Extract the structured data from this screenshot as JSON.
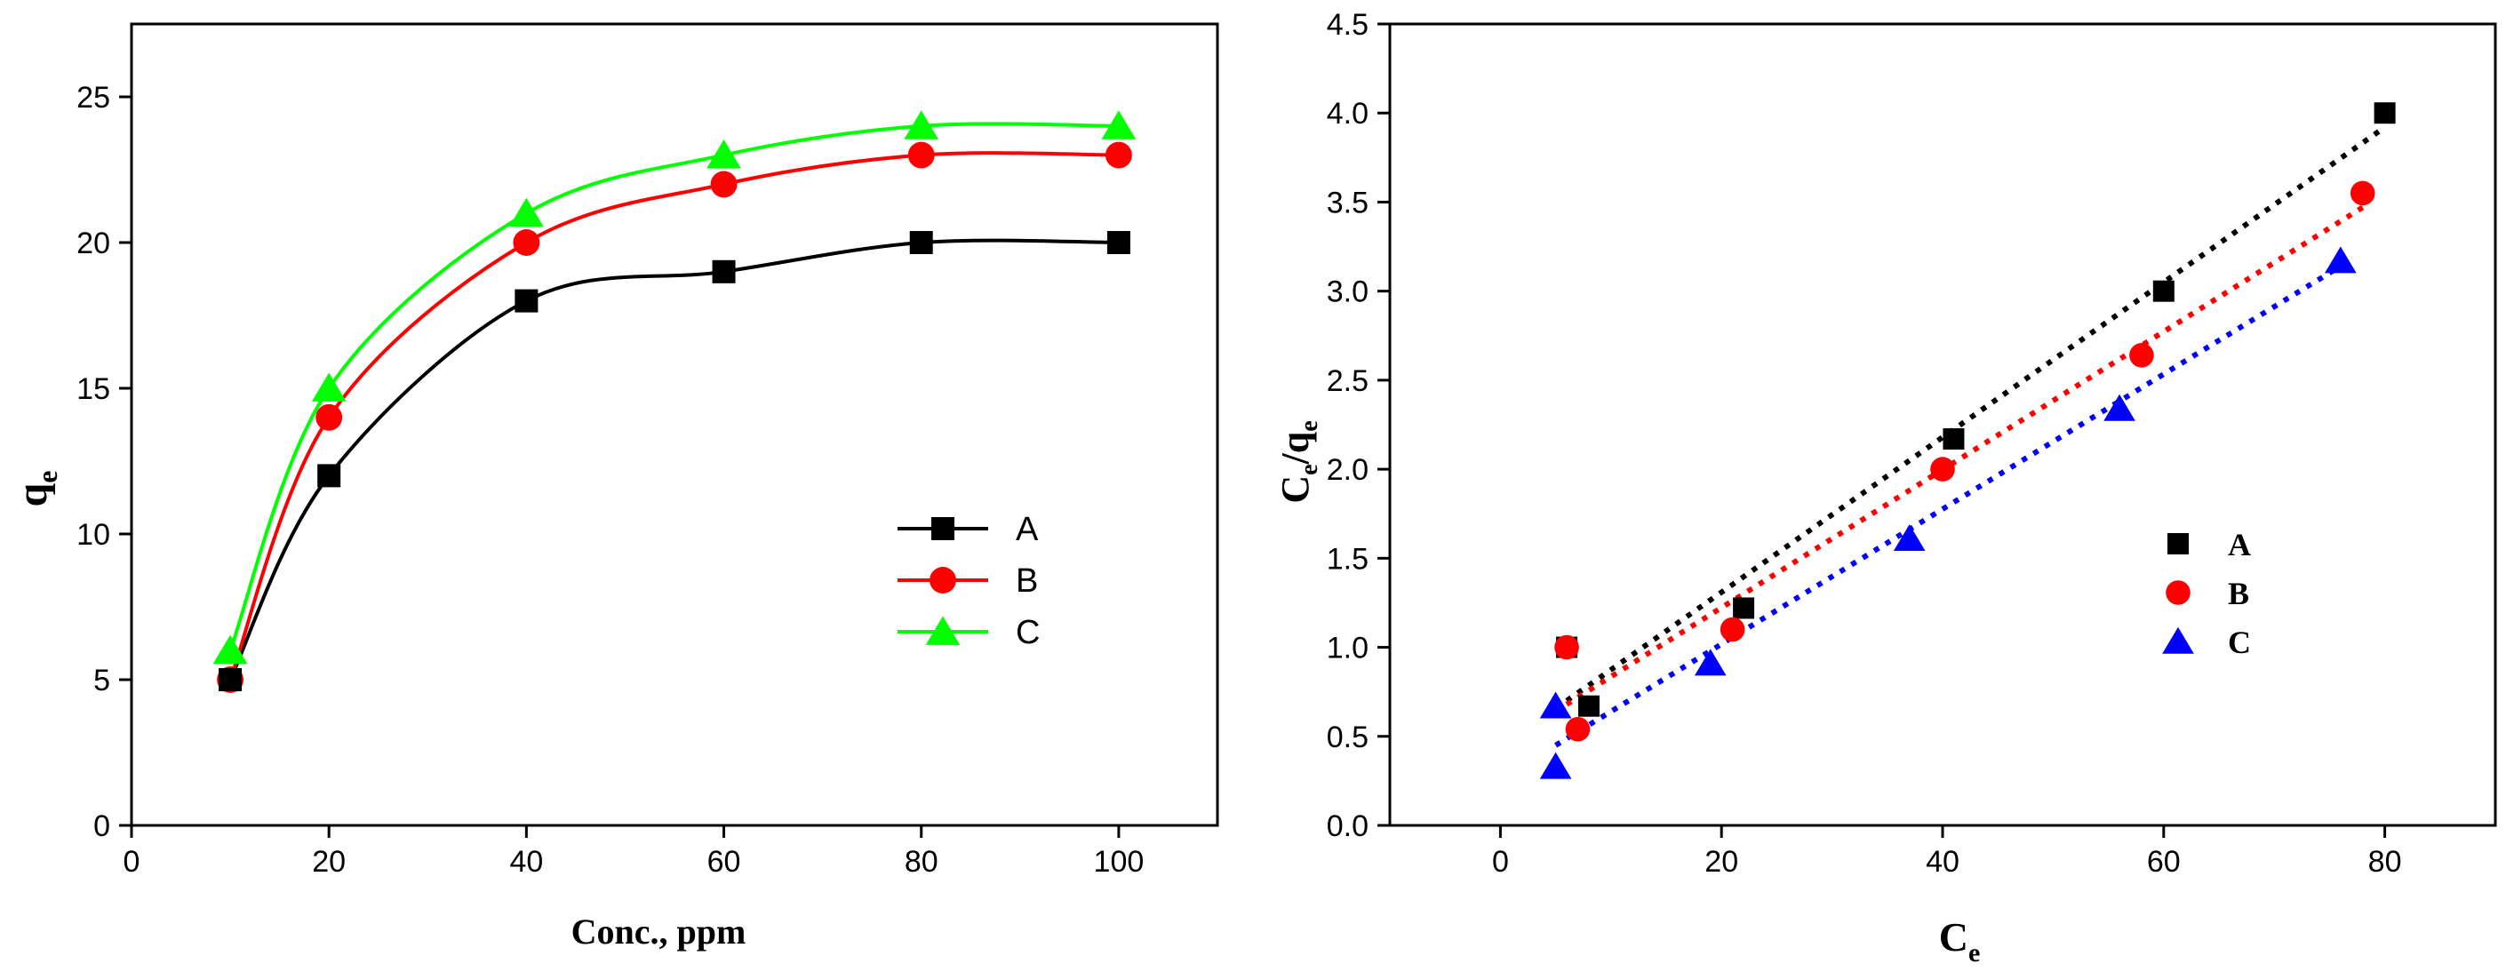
{
  "chart_data": [
    {
      "type": "line",
      "xlabel": "Conc., ppm",
      "ylabel_main": "q",
      "ylabel_sub": "e",
      "xlim": [
        0,
        110
      ],
      "ylim": [
        0,
        27.5
      ],
      "xticks": [
        0,
        20,
        40,
        60,
        80,
        100
      ],
      "yticks": [
        0,
        5,
        10,
        15,
        20,
        25
      ],
      "legend_position": "center-right",
      "x": [
        10,
        20,
        40,
        60,
        80,
        100
      ],
      "series": [
        {
          "name": "A",
          "values": [
            5,
            12,
            18,
            19,
            20,
            20
          ],
          "color": "#000000",
          "marker": "square"
        },
        {
          "name": "B",
          "values": [
            5,
            14,
            20,
            22,
            23,
            23
          ],
          "color": "#ff0000",
          "marker": "circle"
        },
        {
          "name": "C",
          "values": [
            6,
            15,
            21,
            23,
            24,
            24
          ],
          "color": "#00ff00",
          "marker": "triangle"
        }
      ]
    },
    {
      "type": "scatter",
      "xlabel_main": "C",
      "xlabel_sub": "e",
      "ylabel": [
        "C",
        "e",
        "/q",
        "e"
      ],
      "xlim": [
        -10,
        90
      ],
      "ylim": [
        0,
        4.5
      ],
      "xticks": [
        0,
        20,
        40,
        60,
        80
      ],
      "yticks": [
        "0.0",
        "0.5",
        "1.0",
        "1.5",
        "2.0",
        "2.5",
        "3.0",
        "3.5",
        "4.0",
        "4.5"
      ],
      "legend_position": "center-right",
      "series": [
        {
          "name": "A",
          "color": "#000000",
          "marker": "square",
          "points": [
            [
              6,
              1.0
            ],
            [
              8,
              0.67
            ],
            [
              22,
              1.22
            ],
            [
              41,
              2.17
            ],
            [
              60,
              3.0
            ],
            [
              80,
              4.0
            ]
          ],
          "fit": [
            [
              6,
              0.7
            ],
            [
              80,
              3.92
            ]
          ]
        },
        {
          "name": "B",
          "color": "#ff0000",
          "marker": "circle",
          "points": [
            [
              6,
              1.0
            ],
            [
              7,
              0.54
            ],
            [
              21,
              1.1
            ],
            [
              40,
              2.0
            ],
            [
              58,
              2.64
            ],
            [
              78,
              3.55
            ]
          ],
          "fit": [
            [
              6,
              0.68
            ],
            [
              78,
              3.47
            ]
          ]
        },
        {
          "name": "C",
          "color": "#0000ff",
          "marker": "triangle",
          "points": [
            [
              5,
              0.67
            ],
            [
              5,
              0.33
            ],
            [
              19,
              0.91
            ],
            [
              37,
              1.61
            ],
            [
              56,
              2.34
            ],
            [
              76,
              3.17
            ]
          ],
          "fit": [
            [
              5,
              0.45
            ],
            [
              76,
              3.14
            ]
          ]
        }
      ]
    }
  ]
}
